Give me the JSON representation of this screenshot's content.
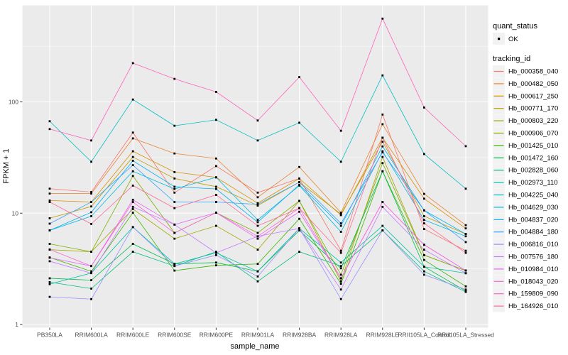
{
  "figure": {
    "background": "#FFFFFF",
    "panel_background": "#EBEBEB",
    "grid_color": "#FFFFFF",
    "tick_color": "#333333",
    "tick_label_color": "#4D4D4D",
    "point_color": "#000000",
    "legend_key_background": "#F2F2F2"
  },
  "legend": {
    "quant_status_title": "quant_status",
    "quant_status_items": [
      {
        "label": "OK",
        "symbol": "point"
      }
    ],
    "tracking_id_title": "tracking_id"
  },
  "chart_data": {
    "type": "line",
    "title": "",
    "xlabel": "sample_name",
    "ylabel": "FPKM + 1",
    "y_scale": "log10",
    "y_breaks": [
      1,
      10,
      100
    ],
    "y_minor_breaks": [
      3.162,
      31.62,
      316.2
    ],
    "ylim": [
      0.94,
      730
    ],
    "grid": true,
    "legend_position": "right",
    "point_shape": "small-black-square",
    "categories": [
      "PB350LA",
      "RRIM600LA",
      "RRIM600LE",
      "RRIM600SE",
      "RRIM600PE",
      "RRIM901LA",
      "RRIM928BA",
      "RRIM928LA",
      "RRIM928LE",
      "RRII105LA_Control",
      "RRII105LA_Stressed"
    ],
    "series": [
      {
        "name": "Hb_000358_040",
        "color": "#F8766D",
        "values": [
          16.6,
          15.5,
          53,
          15.3,
          26.5,
          15.3,
          20.5,
          4.6,
          77,
          7.2,
          4.6
        ]
      },
      {
        "name": "Hb_000482_050",
        "color": "#EA8331",
        "values": [
          15,
          15,
          47,
          34.4,
          31,
          13.9,
          26,
          10.1,
          63,
          14.9,
          7.8
        ]
      },
      {
        "name": "Hb_000617_250",
        "color": "#D89000",
        "values": [
          13,
          12.6,
          36,
          23.4,
          21,
          12.3,
          20.5,
          9.6,
          47.7,
          13.5,
          7.3
        ]
      },
      {
        "name": "Hb_000771_170",
        "color": "#C09B00",
        "values": [
          9,
          11.5,
          32,
          20.5,
          17.3,
          11.7,
          19,
          9.8,
          43.8,
          9.4,
          6.5
        ]
      },
      {
        "name": "Hb_000803_220",
        "color": "#A3A500",
        "values": [
          4.7,
          4.5,
          10.9,
          5.9,
          7.7,
          4.7,
          12.9,
          2.44,
          32,
          4.2,
          3.05
        ]
      },
      {
        "name": "Hb_000906_070",
        "color": "#7CAE00",
        "values": [
          5.3,
          4.5,
          21.6,
          6.65,
          10.1,
          6.65,
          12.9,
          2.8,
          28.2,
          4.2,
          3.05
        ]
      },
      {
        "name": "Hb_001425_010",
        "color": "#39B600",
        "values": [
          4.0,
          3.0,
          10.1,
          3.05,
          3.4,
          3.5,
          8.9,
          2.32,
          23.8,
          3.8,
          2.2
        ]
      },
      {
        "name": "Hb_001472_160",
        "color": "#00BB4E",
        "values": [
          2.6,
          2.5,
          5.3,
          3.5,
          3.6,
          3.0,
          7.0,
          3.2,
          23.8,
          3.3,
          2.0
        ]
      },
      {
        "name": "Hb_002828_060",
        "color": "#00BF7D",
        "values": [
          2.4,
          2.1,
          4.5,
          3.35,
          4.5,
          2.44,
          4.5,
          3.35,
          7.0,
          3.0,
          1.96
        ]
      },
      {
        "name": "Hb_002973_110",
        "color": "#00C1A3",
        "values": [
          2.3,
          2.9,
          7.5,
          3.5,
          4.4,
          3.0,
          7.3,
          3.6,
          7.7,
          3.3,
          2.89
        ]
      },
      {
        "name": "Hb_004225_040",
        "color": "#00BFC4",
        "values": [
          67,
          29,
          105,
          61,
          69,
          45,
          65,
          29,
          173,
          34,
          16.6
        ]
      },
      {
        "name": "Hb_004629_030",
        "color": "#00BAE0",
        "values": [
          7.0,
          9.4,
          23.8,
          16.5,
          21,
          8.7,
          17.7,
          6.8,
          36,
          8.7,
          6.2
        ]
      },
      {
        "name": "Hb_004837_020",
        "color": "#00B0F6",
        "values": [
          7.0,
          10.2,
          29.6,
          17.3,
          16.5,
          8.3,
          18,
          7.7,
          39.8,
          10.6,
          6.5
        ]
      },
      {
        "name": "Hb_004884_180",
        "color": "#35A2FF",
        "values": [
          8.05,
          12.6,
          27,
          12.6,
          12.6,
          12.0,
          19,
          8.1,
          35.2,
          10.6,
          5.5
        ]
      },
      {
        "name": "Hb_006816_010",
        "color": "#9590FF",
        "values": [
          1.77,
          1.69,
          7.5,
          3.35,
          4.2,
          2.7,
          7.3,
          1.69,
          7.0,
          2.8,
          2.06
        ]
      },
      {
        "name": "Hb_007576_180",
        "color": "#C77CFF",
        "values": [
          3.7,
          2.89,
          11.4,
          7.9,
          4.4,
          6.2,
          7.3,
          2.06,
          11.4,
          4.7,
          2.89
        ]
      },
      {
        "name": "Hb_010984_010",
        "color": "#E76BF3",
        "values": [
          3.98,
          3.35,
          13.2,
          7.9,
          10.1,
          5.9,
          10.3,
          2.6,
          12.6,
          5.2,
          3.05
        ]
      },
      {
        "name": "Hb_018043_020",
        "color": "#FA62DB",
        "values": [
          4.72,
          3.35,
          12.6,
          6.65,
          10.1,
          6.2,
          11.1,
          2.6,
          12.6,
          5.2,
          3.05
        ]
      },
      {
        "name": "Hb_159809_090",
        "color": "#FF62BC",
        "values": [
          57,
          45,
          223,
          161,
          123,
          68,
          167,
          55,
          560,
          89,
          40
        ]
      },
      {
        "name": "Hb_164926_010",
        "color": "#FF6A98",
        "values": [
          12.6,
          8.0,
          17.7,
          11.1,
          14.6,
          7.7,
          11.1,
          4.4,
          47.7,
          8.1,
          4.4
        ]
      }
    ]
  }
}
